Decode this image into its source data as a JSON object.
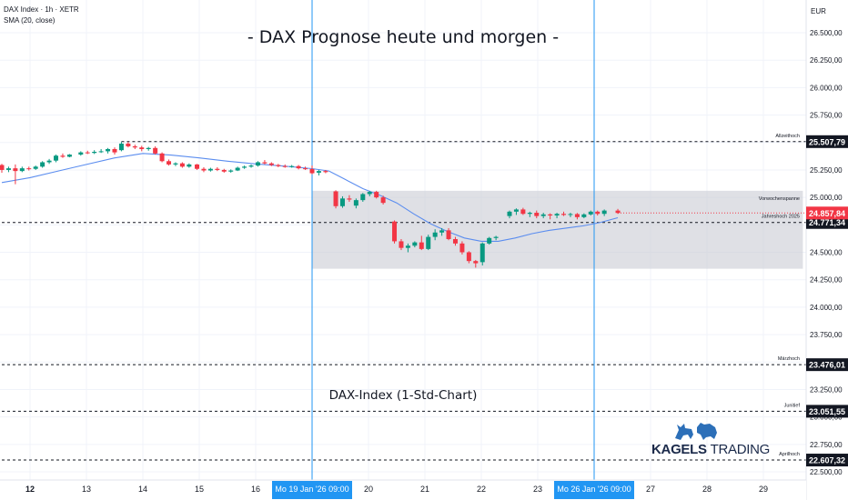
{
  "header": {
    "symbol": "DAX Index · 1h · XETR",
    "indicator": "SMA (20, close)",
    "currency": "EUR"
  },
  "branding": {
    "logo_bold": "KAGELS",
    "logo_thin": "TRADING",
    "logo_icons": [
      "bull-icon",
      "bear-icon"
    ]
  },
  "chart_data": {
    "type": "candlestick",
    "title": "- DAX Prognose heute und morgen -",
    "subtitle": "DAX-Index (1-Std-Chart)",
    "y_ticks": [
      22500,
      22750,
      23000,
      23250,
      23500,
      23750,
      24000,
      24250,
      24500,
      24750,
      25000,
      25250,
      25500,
      25750,
      26000,
      26250,
      26500
    ],
    "y_tick_labels": [
      "22.500,00",
      "22.750,00",
      "23.000,00",
      "23.250,00",
      "23.500,00",
      "23.750,00",
      "24.000,00",
      "24.250,00",
      "24.500,00",
      "24.750,00",
      "25.000,00",
      "25.250,00",
      "25.500,00",
      "25.750,00",
      "26.000,00",
      "26.250,00",
      "26.500,00"
    ],
    "ylim": [
      22470,
      26780
    ],
    "x_day_labels": [
      {
        "label": "12",
        "day": 0,
        "bold": true
      },
      {
        "label": "13",
        "day": 1
      },
      {
        "label": "14",
        "day": 2
      },
      {
        "label": "15",
        "day": 3
      },
      {
        "label": "16",
        "day": 4
      },
      {
        "label": "20",
        "day": 6
      },
      {
        "label": "21",
        "day": 7
      },
      {
        "label": "22",
        "day": 8
      },
      {
        "label": "23",
        "day": 9
      },
      {
        "label": "27",
        "day": 11
      },
      {
        "label": "28",
        "day": 12
      },
      {
        "label": "29",
        "day": 13
      }
    ],
    "markers": [
      {
        "label": "Mo 19 Jan '26   09:00",
        "day": 5,
        "color": "#2196f3"
      },
      {
        "label": "Mo 26 Jan '26   09:00",
        "day": 10,
        "color": "#2196f3"
      }
    ],
    "levels": [
      {
        "name": "Allzeithoch",
        "value": 25507.79,
        "label": "25.507,79",
        "from_day": 1.62
      },
      {
        "name": "Jahreshoch 2025",
        "value": 24771.34,
        "label": "24.771,34",
        "from_day": -0.5
      },
      {
        "name": "Märzhoch",
        "value": 23476.01,
        "label": "23.476,01",
        "from_day": -0.5
      },
      {
        "name": "Junitief",
        "value": 23051.55,
        "label": "23.051,55",
        "from_day": -0.5
      },
      {
        "name": "Aprilhoch",
        "value": 22607.32,
        "label": "22.607,32",
        "from_day": -0.5
      }
    ],
    "zones": [
      {
        "name": "Vorwochenspanne",
        "from": 24350,
        "to": 25060,
        "from_day": 5,
        "to_day": 13.7
      }
    ],
    "last_price": {
      "value": 24857.84,
      "label": "24.857,84",
      "color": "#f23645"
    },
    "candles": [
      {
        "t": -0.5,
        "o": 25295,
        "h": 25305,
        "l": 25225,
        "c": 25250
      },
      {
        "t": -0.38,
        "o": 25250,
        "h": 25280,
        "l": 25230,
        "c": 25265
      },
      {
        "t": -0.26,
        "o": 25265,
        "h": 25300,
        "l": 25120,
        "c": 25240
      },
      {
        "t": -0.14,
        "o": 25240,
        "h": 25280,
        "l": 25230,
        "c": 25265
      },
      {
        "t": -0.02,
        "o": 25265,
        "h": 25280,
        "l": 25245,
        "c": 25260
      },
      {
        "t": 0.1,
        "o": 25260,
        "h": 25290,
        "l": 25250,
        "c": 25280
      },
      {
        "t": 0.22,
        "o": 25280,
        "h": 25330,
        "l": 25270,
        "c": 25320
      },
      {
        "t": 0.34,
        "o": 25320,
        "h": 25350,
        "l": 25305,
        "c": 25335
      },
      {
        "t": 0.46,
        "o": 25335,
        "h": 25390,
        "l": 25320,
        "c": 25380
      },
      {
        "t": 0.58,
        "o": 25380,
        "h": 25400,
        "l": 25360,
        "c": 25370
      },
      {
        "t": 0.7,
        "o": 25370,
        "h": 25395,
        "l": 25365,
        "c": 25390
      },
      {
        "t": 0.9,
        "o": 25390,
        "h": 25420,
        "l": 25380,
        "c": 25410
      },
      {
        "t": 1.02,
        "o": 25410,
        "h": 25425,
        "l": 25395,
        "c": 25405
      },
      {
        "t": 1.14,
        "o": 25405,
        "h": 25430,
        "l": 25395,
        "c": 25415
      },
      {
        "t": 1.26,
        "o": 25415,
        "h": 25440,
        "l": 25405,
        "c": 25420
      },
      {
        "t": 1.38,
        "o": 25420,
        "h": 25450,
        "l": 25400,
        "c": 25440
      },
      {
        "t": 1.5,
        "o": 25440,
        "h": 25455,
        "l": 25390,
        "c": 25410
      },
      {
        "t": 1.62,
        "o": 25430,
        "h": 25505,
        "l": 25420,
        "c": 25490
      },
      {
        "t": 1.74,
        "o": 25490,
        "h": 25505,
        "l": 25455,
        "c": 25465
      },
      {
        "t": 1.86,
        "o": 25465,
        "h": 25480,
        "l": 25440,
        "c": 25455
      },
      {
        "t": 1.98,
        "o": 25455,
        "h": 25470,
        "l": 25420,
        "c": 25440
      },
      {
        "t": 2.1,
        "o": 25440,
        "h": 25460,
        "l": 25425,
        "c": 25450
      },
      {
        "t": 2.22,
        "o": 25450,
        "h": 25465,
        "l": 25390,
        "c": 25400
      },
      {
        "t": 2.34,
        "o": 25400,
        "h": 25410,
        "l": 25320,
        "c": 25330
      },
      {
        "t": 2.46,
        "o": 25330,
        "h": 25345,
        "l": 25290,
        "c": 25300
      },
      {
        "t": 2.58,
        "o": 25300,
        "h": 25320,
        "l": 25285,
        "c": 25310
      },
      {
        "t": 2.7,
        "o": 25310,
        "h": 25320,
        "l": 25270,
        "c": 25280
      },
      {
        "t": 2.82,
        "o": 25280,
        "h": 25310,
        "l": 25270,
        "c": 25300
      },
      {
        "t": 2.96,
        "o": 25300,
        "h": 25305,
        "l": 25250,
        "c": 25260
      },
      {
        "t": 3.08,
        "o": 25260,
        "h": 25275,
        "l": 25230,
        "c": 25245
      },
      {
        "t": 3.2,
        "o": 25245,
        "h": 25270,
        "l": 25235,
        "c": 25260
      },
      {
        "t": 3.32,
        "o": 25260,
        "h": 25275,
        "l": 25240,
        "c": 25250
      },
      {
        "t": 3.44,
        "o": 25250,
        "h": 25260,
        "l": 25225,
        "c": 25235
      },
      {
        "t": 3.56,
        "o": 25235,
        "h": 25255,
        "l": 25225,
        "c": 25245
      },
      {
        "t": 3.68,
        "o": 25245,
        "h": 25280,
        "l": 25240,
        "c": 25270
      },
      {
        "t": 3.8,
        "o": 25270,
        "h": 25290,
        "l": 25260,
        "c": 25280
      },
      {
        "t": 3.92,
        "o": 25280,
        "h": 25300,
        "l": 25270,
        "c": 25290
      },
      {
        "t": 4.04,
        "o": 25290,
        "h": 25330,
        "l": 25280,
        "c": 25320
      },
      {
        "t": 4.16,
        "o": 25320,
        "h": 25340,
        "l": 25300,
        "c": 25310
      },
      {
        "t": 4.28,
        "o": 25310,
        "h": 25320,
        "l": 25285,
        "c": 25295
      },
      {
        "t": 4.4,
        "o": 25295,
        "h": 25305,
        "l": 25275,
        "c": 25285
      },
      {
        "t": 4.52,
        "o": 25285,
        "h": 25300,
        "l": 25270,
        "c": 25280
      },
      {
        "t": 4.64,
        "o": 25280,
        "h": 25295,
        "l": 25270,
        "c": 25285
      },
      {
        "t": 4.76,
        "o": 25285,
        "h": 25295,
        "l": 25255,
        "c": 25265
      },
      {
        "t": 4.88,
        "o": 25265,
        "h": 25280,
        "l": 25250,
        "c": 25258
      },
      {
        "t": 5.0,
        "o": 25258,
        "h": 25290,
        "l": 25210,
        "c": 25220
      },
      {
        "t": 5.12,
        "o": 25225,
        "h": 25250,
        "l": 25200,
        "c": 25240
      },
      {
        "t": 5.24,
        "o": 25240,
        "h": 25250,
        "l": 25220,
        "c": 25230
      },
      {
        "t": 5.42,
        "o": 25055,
        "h": 25065,
        "l": 24900,
        "c": 24920
      },
      {
        "t": 5.54,
        "o": 24920,
        "h": 25010,
        "l": 24905,
        "c": 24990
      },
      {
        "t": 5.66,
        "o": 24990,
        "h": 25020,
        "l": 24960,
        "c": 24980
      },
      {
        "t": 5.78,
        "o": 24925,
        "h": 24990,
        "l": 24900,
        "c": 24975
      },
      {
        "t": 5.9,
        "o": 24975,
        "h": 25040,
        "l": 24960,
        "c": 25030
      },
      {
        "t": 6.02,
        "o": 25030,
        "h": 25060,
        "l": 25010,
        "c": 25050
      },
      {
        "t": 6.14,
        "o": 25050,
        "h": 25060,
        "l": 24990,
        "c": 25000
      },
      {
        "t": 6.26,
        "o": 25000,
        "h": 25015,
        "l": 24935,
        "c": 24950
      },
      {
        "t": 6.46,
        "o": 24780,
        "h": 24790,
        "l": 24580,
        "c": 24600
      },
      {
        "t": 6.58,
        "o": 24600,
        "h": 24620,
        "l": 24520,
        "c": 24540
      },
      {
        "t": 6.7,
        "o": 24540,
        "h": 24580,
        "l": 24500,
        "c": 24560
      },
      {
        "t": 6.82,
        "o": 24560,
        "h": 24600,
        "l": 24545,
        "c": 24590
      },
      {
        "t": 6.94,
        "o": 24590,
        "h": 24650,
        "l": 24520,
        "c": 24530
      },
      {
        "t": 7.06,
        "o": 24530,
        "h": 24660,
        "l": 24520,
        "c": 24640
      },
      {
        "t": 7.18,
        "o": 24640,
        "h": 24710,
        "l": 24610,
        "c": 24680
      },
      {
        "t": 7.3,
        "o": 24680,
        "h": 24720,
        "l": 24650,
        "c": 24700
      },
      {
        "t": 7.42,
        "o": 24700,
        "h": 24720,
        "l": 24610,
        "c": 24620
      },
      {
        "t": 7.54,
        "o": 24620,
        "h": 24640,
        "l": 24560,
        "c": 24580
      },
      {
        "t": 7.66,
        "o": 24580,
        "h": 24600,
        "l": 24480,
        "c": 24500
      },
      {
        "t": 7.78,
        "o": 24500,
        "h": 24510,
        "l": 24400,
        "c": 24420
      },
      {
        "t": 7.9,
        "o": 24420,
        "h": 24430,
        "l": 24360,
        "c": 24400
      },
      {
        "t": 8.02,
        "o": 24410,
        "h": 24590,
        "l": 24380,
        "c": 24580
      },
      {
        "t": 8.14,
        "o": 24580,
        "h": 24640,
        "l": 24570,
        "c": 24630
      },
      {
        "t": 8.26,
        "o": 24630,
        "h": 24650,
        "l": 24610,
        "c": 24640
      },
      {
        "t": 8.5,
        "o": 24830,
        "h": 24880,
        "l": 24810,
        "c": 24870
      },
      {
        "t": 8.62,
        "o": 24870,
        "h": 24900,
        "l": 24840,
        "c": 24890
      },
      {
        "t": 8.74,
        "o": 24890,
        "h": 24905,
        "l": 24840,
        "c": 24850
      },
      {
        "t": 8.86,
        "o": 24850,
        "h": 24870,
        "l": 24820,
        "c": 24860
      },
      {
        "t": 8.98,
        "o": 24860,
        "h": 24880,
        "l": 24810,
        "c": 24830
      },
      {
        "t": 9.1,
        "o": 24830,
        "h": 24860,
        "l": 24810,
        "c": 24845
      },
      {
        "t": 9.22,
        "o": 24845,
        "h": 24855,
        "l": 24800,
        "c": 24835
      },
      {
        "t": 9.34,
        "o": 24835,
        "h": 24860,
        "l": 24810,
        "c": 24850
      },
      {
        "t": 9.46,
        "o": 24850,
        "h": 24870,
        "l": 24830,
        "c": 24840
      },
      {
        "t": 9.58,
        "o": 24840,
        "h": 24860,
        "l": 24820,
        "c": 24848
      },
      {
        "t": 9.7,
        "o": 24848,
        "h": 24858,
        "l": 24800,
        "c": 24820
      },
      {
        "t": 9.82,
        "o": 24820,
        "h": 24855,
        "l": 24810,
        "c": 24845
      },
      {
        "t": 9.94,
        "o": 24845,
        "h": 24880,
        "l": 24835,
        "c": 24870
      },
      {
        "t": 10.06,
        "o": 24870,
        "h": 24880,
        "l": 24835,
        "c": 24850
      },
      {
        "t": 10.18,
        "o": 24850,
        "h": 24890,
        "l": 24830,
        "c": 24880
      },
      {
        "t": 10.42,
        "o": 24880,
        "h": 24895,
        "l": 24850,
        "c": 24858
      }
    ],
    "sma": {
      "name": "SMA (20, close)",
      "color": "#5b8def",
      "points": [
        [
          -0.5,
          25135
        ],
        [
          0,
          25180
        ],
        [
          0.5,
          25240
        ],
        [
          1,
          25300
        ],
        [
          1.5,
          25360
        ],
        [
          2,
          25400
        ],
        [
          2.5,
          25385
        ],
        [
          3,
          25360
        ],
        [
          3.5,
          25330
        ],
        [
          4,
          25305
        ],
        [
          4.5,
          25285
        ],
        [
          5,
          25262
        ],
        [
          5.3,
          25240
        ],
        [
          5.6,
          25160
        ],
        [
          5.9,
          25080
        ],
        [
          6.2,
          25020
        ],
        [
          6.5,
          24950
        ],
        [
          6.8,
          24850
        ],
        [
          7.1,
          24760
        ],
        [
          7.4,
          24690
        ],
        [
          7.7,
          24630
        ],
        [
          8.0,
          24600
        ],
        [
          8.3,
          24600
        ],
        [
          8.6,
          24630
        ],
        [
          8.9,
          24670
        ],
        [
          9.2,
          24700
        ],
        [
          9.5,
          24720
        ],
        [
          9.8,
          24740
        ],
        [
          10.1,
          24770
        ],
        [
          10.42,
          24815
        ]
      ]
    }
  }
}
